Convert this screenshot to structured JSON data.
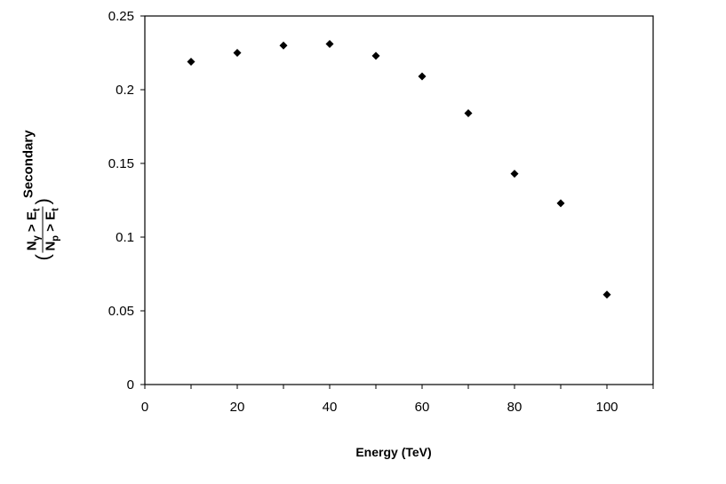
{
  "chart_data": {
    "type": "scatter",
    "title": "",
    "xlabel": "Energy (TeV)",
    "ylabel": {
      "numerator": "N",
      "numerator_sub": "γ",
      "numerator_rest": " > E",
      "numerator_rest_sub": "t",
      "denominator": "N",
      "denominator_sub": "p",
      "denominator_rest": " > E",
      "denominator_rest_sub": "t",
      "open_paren": "(",
      "close_paren": ")",
      "suffix": "Secondary"
    },
    "xlim": [
      0,
      110
    ],
    "ylim": [
      0,
      0.25
    ],
    "x_ticks": [
      "0",
      "20",
      "40",
      "60",
      "80",
      "100"
    ],
    "y_ticks": [
      "0",
      "0.05",
      "0.1",
      "0.15",
      "0.2",
      "0.25"
    ],
    "x_tick_values": [
      0,
      20,
      40,
      60,
      80,
      100
    ],
    "y_tick_values": [
      0,
      0.05,
      0.1,
      0.15,
      0.2,
      0.25
    ],
    "grid": false,
    "marker_color": "#000000",
    "x": [
      10,
      20,
      30,
      40,
      50,
      60,
      70,
      80,
      90,
      100
    ],
    "y": [
      0.219,
      0.225,
      0.23,
      0.231,
      0.223,
      0.209,
      0.184,
      0.143,
      0.123,
      0.061
    ]
  }
}
